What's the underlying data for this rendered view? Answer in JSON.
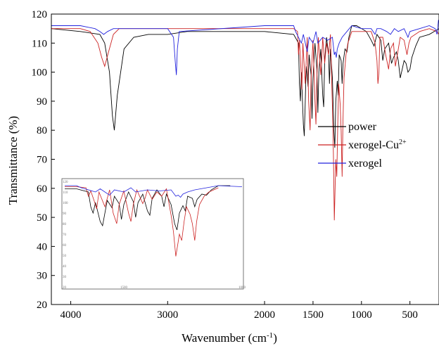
{
  "chart_data": {
    "type": "line",
    "xlabel": "Wavenumber (cm",
    "xlabel_sup": "-1",
    "xlabel_end": ")",
    "ylabel": "Transmittance (%)",
    "xlim": [
      4200,
      200
    ],
    "ylim": [
      20,
      120
    ],
    "x_ticks": [
      4000,
      3000,
      2000,
      1500,
      1000,
      500
    ],
    "x_tick_labels": [
      "4000",
      "3000",
      "2000",
      "1500",
      "1000",
      "500"
    ],
    "y_ticks": [
      20,
      30,
      40,
      50,
      60,
      70,
      80,
      90,
      100,
      110,
      120
    ],
    "grid": false,
    "legend_position": "right",
    "series": [
      {
        "name": "power",
        "color": "#000000",
        "points": [
          [
            4200,
            115
          ],
          [
            3900,
            114
          ],
          [
            3700,
            113
          ],
          [
            3650,
            110
          ],
          [
            3600,
            100
          ],
          [
            3570,
            85
          ],
          [
            3550,
            80
          ],
          [
            3520,
            92
          ],
          [
            3450,
            108
          ],
          [
            3350,
            112
          ],
          [
            3200,
            113
          ],
          [
            3000,
            113
          ],
          [
            2800,
            114
          ],
          [
            2000,
            114
          ],
          [
            1700,
            113
          ],
          [
            1650,
            110
          ],
          [
            1640,
            96
          ],
          [
            1630,
            90
          ],
          [
            1620,
            100
          ],
          [
            1600,
            82
          ],
          [
            1590,
            78
          ],
          [
            1580,
            90
          ],
          [
            1570,
            102
          ],
          [
            1550,
            95
          ],
          [
            1540,
            106
          ],
          [
            1520,
            99
          ],
          [
            1510,
            84
          ],
          [
            1500,
            98
          ],
          [
            1480,
            110
          ],
          [
            1460,
            101
          ],
          [
            1450,
            86
          ],
          [
            1440,
            100
          ],
          [
            1420,
            108
          ],
          [
            1400,
            92
          ],
          [
            1390,
            88
          ],
          [
            1380,
            104
          ],
          [
            1360,
            112
          ],
          [
            1340,
            106
          ],
          [
            1330,
            96
          ],
          [
            1320,
            108
          ],
          [
            1300,
            98
          ],
          [
            1285,
            80
          ],
          [
            1275,
            74
          ],
          [
            1265,
            90
          ],
          [
            1250,
            97
          ],
          [
            1240,
            92
          ],
          [
            1230,
            106
          ],
          [
            1210,
            104
          ],
          [
            1200,
            96
          ],
          [
            1190,
            103
          ],
          [
            1170,
            108
          ],
          [
            1150,
            107
          ],
          [
            1130,
            112
          ],
          [
            1100,
            116
          ],
          [
            1050,
            116
          ],
          [
            950,
            114
          ],
          [
            900,
            111
          ],
          [
            870,
            109
          ],
          [
            840,
            113
          ],
          [
            800,
            111
          ],
          [
            780,
            104
          ],
          [
            760,
            108
          ],
          [
            720,
            110
          ],
          [
            690,
            103
          ],
          [
            670,
            105
          ],
          [
            640,
            107
          ],
          [
            620,
            104
          ],
          [
            600,
            98
          ],
          [
            580,
            101
          ],
          [
            560,
            104
          ],
          [
            540,
            103
          ],
          [
            520,
            100
          ],
          [
            500,
            101
          ],
          [
            480,
            105
          ],
          [
            440,
            109
          ],
          [
            400,
            112
          ],
          [
            300,
            113
          ],
          [
            200,
            115
          ]
        ]
      },
      {
        "name": "xerogel-Cu",
        "name_sup": "2+",
        "color": "#cc2222",
        "points": [
          [
            4200,
            115
          ],
          [
            3900,
            115
          ],
          [
            3800,
            114
          ],
          [
            3720,
            110
          ],
          [
            3680,
            105
          ],
          [
            3650,
            102
          ],
          [
            3610,
            107
          ],
          [
            3560,
            113
          ],
          [
            3500,
            115
          ],
          [
            3000,
            115
          ],
          [
            2000,
            115
          ],
          [
            1700,
            115
          ],
          [
            1660,
            114
          ],
          [
            1650,
            106
          ],
          [
            1640,
            111
          ],
          [
            1620,
            98
          ],
          [
            1615,
            94
          ],
          [
            1605,
            110
          ],
          [
            1580,
            96
          ],
          [
            1560,
            112
          ],
          [
            1545,
            90
          ],
          [
            1530,
            80
          ],
          [
            1520,
            98
          ],
          [
            1500,
            111
          ],
          [
            1480,
            90
          ],
          [
            1470,
            82
          ],
          [
            1460,
            98
          ],
          [
            1445,
            112
          ],
          [
            1420,
            99
          ],
          [
            1410,
            104
          ],
          [
            1400,
            112
          ],
          [
            1380,
            103
          ],
          [
            1360,
            110
          ],
          [
            1340,
            106
          ],
          [
            1320,
            113
          ],
          [
            1300,
            88
          ],
          [
            1290,
            72
          ],
          [
            1280,
            49
          ],
          [
            1272,
            60
          ],
          [
            1265,
            70
          ],
          [
            1255,
            64
          ],
          [
            1245,
            82
          ],
          [
            1235,
            96
          ],
          [
            1220,
            89
          ],
          [
            1210,
            80
          ],
          [
            1200,
            64
          ],
          [
            1192,
            82
          ],
          [
            1180,
            98
          ],
          [
            1160,
            106
          ],
          [
            1140,
            110
          ],
          [
            1100,
            114
          ],
          [
            900,
            114
          ],
          [
            860,
            110
          ],
          [
            840,
            104
          ],
          [
            830,
            96
          ],
          [
            820,
            100
          ],
          [
            810,
            112
          ],
          [
            780,
            112
          ],
          [
            750,
            106
          ],
          [
            720,
            101
          ],
          [
            700,
            108
          ],
          [
            670,
            110
          ],
          [
            650,
            102
          ],
          [
            630,
            106
          ],
          [
            600,
            112
          ],
          [
            560,
            111
          ],
          [
            530,
            106
          ],
          [
            510,
            110
          ],
          [
            490,
            112
          ],
          [
            400,
            114
          ],
          [
            300,
            115
          ],
          [
            220,
            114
          ],
          [
            200,
            113
          ]
        ]
      },
      {
        "name": "xerogel",
        "color": "#2222dd",
        "points": [
          [
            4200,
            116
          ],
          [
            3900,
            116
          ],
          [
            3750,
            115
          ],
          [
            3700,
            114
          ],
          [
            3660,
            113
          ],
          [
            3620,
            114
          ],
          [
            3560,
            115
          ],
          [
            3000,
            115
          ],
          [
            2940,
            112
          ],
          [
            2920,
            103
          ],
          [
            2910,
            99
          ],
          [
            2900,
            108
          ],
          [
            2880,
            114
          ],
          [
            2000,
            116
          ],
          [
            1700,
            116
          ],
          [
            1680,
            114
          ],
          [
            1620,
            110
          ],
          [
            1600,
            113
          ],
          [
            1560,
            107
          ],
          [
            1540,
            112
          ],
          [
            1500,
            110
          ],
          [
            1470,
            114
          ],
          [
            1450,
            110
          ],
          [
            1400,
            112
          ],
          [
            1350,
            111
          ],
          [
            1300,
            112
          ],
          [
            1280,
            106
          ],
          [
            1270,
            107
          ],
          [
            1260,
            105
          ],
          [
            1250,
            108
          ],
          [
            1230,
            110
          ],
          [
            1200,
            112
          ],
          [
            1150,
            114
          ],
          [
            1100,
            116
          ],
          [
            1000,
            115
          ],
          [
            900,
            115
          ],
          [
            860,
            113
          ],
          [
            840,
            115
          ],
          [
            800,
            115
          ],
          [
            740,
            114
          ],
          [
            700,
            113
          ],
          [
            660,
            115
          ],
          [
            620,
            114
          ],
          [
            560,
            115
          ],
          [
            520,
            112
          ],
          [
            500,
            114
          ],
          [
            400,
            115
          ],
          [
            300,
            116
          ],
          [
            240,
            115
          ],
          [
            220,
            113
          ],
          [
            205,
            118
          ],
          [
            200,
            117
          ]
        ]
      }
    ],
    "inset": {
      "type": "line",
      "x_tick_labels": [
        "1500",
        "1000"
      ],
      "y_tick_labels": [
        "120",
        "110",
        "100",
        "90",
        "80",
        "70",
        "60",
        "50",
        "40",
        "30",
        "20"
      ]
    }
  }
}
